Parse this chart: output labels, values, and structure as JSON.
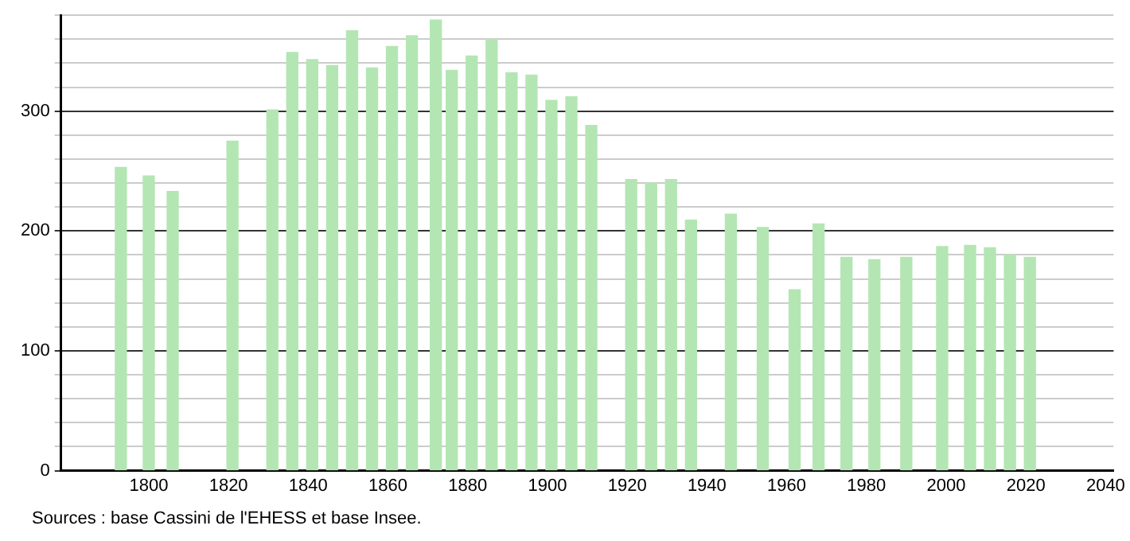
{
  "chart_data": {
    "type": "bar",
    "x": [
      1793,
      1800,
      1806,
      1821,
      1831,
      1836,
      1841,
      1846,
      1851,
      1856,
      1861,
      1866,
      1872,
      1876,
      1881,
      1886,
      1891,
      1896,
      1901,
      1906,
      1911,
      1921,
      1926,
      1931,
      1936,
      1946,
      1954,
      1962,
      1968,
      1975,
      1982,
      1990,
      1999,
      2006,
      2011,
      2016,
      2021
    ],
    "values": [
      253,
      246,
      233,
      275,
      301,
      349,
      343,
      338,
      367,
      336,
      354,
      363,
      376,
      334,
      346,
      360,
      332,
      330,
      309,
      312,
      288,
      243,
      240,
      243,
      209,
      214,
      203,
      151,
      206,
      178,
      176,
      178,
      187,
      188,
      186,
      180,
      178
    ],
    "color": "#b3e6b3",
    "xlim": [
      1778,
      2042
    ],
    "xticks": [
      1800,
      1820,
      1840,
      1860,
      1880,
      1900,
      1920,
      1940,
      1960,
      1980,
      2000,
      2020,
      2040
    ],
    "ylim": [
      0,
      380
    ],
    "yticks": [
      0,
      {
        "value": 20,
        "label": null
      },
      {
        "value": 40,
        "label": null
      },
      {
        "value": 60,
        "label": null
      },
      {
        "value": 80,
        "label": null
      },
      100,
      {
        "value": 120,
        "label": null
      },
      {
        "value": 140,
        "label": null
      },
      {
        "value": 160,
        "label": null
      },
      {
        "value": 180,
        "label": null
      },
      200,
      {
        "value": 220,
        "label": null
      },
      {
        "value": 240,
        "label": null
      },
      {
        "value": 260,
        "label": null
      },
      {
        "value": 280,
        "label": null
      },
      300,
      {
        "value": 320,
        "label": null
      },
      {
        "value": 340,
        "label": null
      },
      {
        "value": 360,
        "label": null
      },
      {
        "value": 380,
        "label": null
      }
    ],
    "grid": "y",
    "legend": false,
    "annotations": [
      "Sources : base Cassini de l'EHESS et base Insee."
    ]
  }
}
